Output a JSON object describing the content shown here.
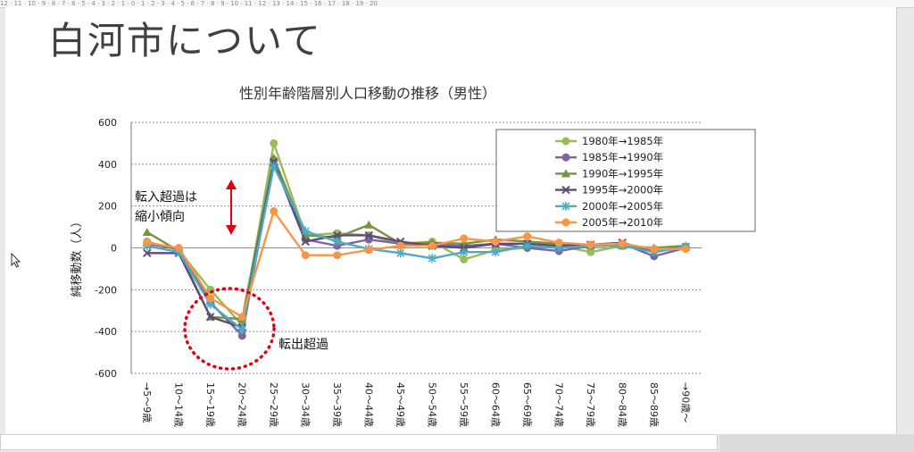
{
  "ruler": {
    "text": "12 · 11 · 10 · 9 · 8 · 7 · 6 · 5 · 4 · 3 · 2 · 1 · 0 · 1 · 2 · 3 · 4 · 5 · 6 · 7 · 8 · 9 · 10 · 11 · 12 · 13 · 14 · 15 · 16 · 17 · 18 · 19 · 20"
  },
  "slide": {
    "title": "白河市について"
  },
  "colors": {
    "s1980": "#9bbb59",
    "s1985": "#8064a2",
    "s1990": "#77933c",
    "s1995": "#604a7b",
    "s2000": "#4bacc6",
    "s2005": "#f79646",
    "arrow": "#e3000f",
    "circle": "#e3000f",
    "zero_line": "#e46c6c"
  },
  "chart_data": {
    "type": "line",
    "title": "性別年齢階層別人口移動の推移（男性）",
    "ylabel": "純移動数（人）",
    "xlabel": "",
    "ylim": [
      -600,
      600
    ],
    "yticks": [
      "600",
      "400",
      "200",
      "0",
      "-200",
      "-400",
      "-600"
    ],
    "categories": [
      "0→5～9歳",
      "5～9→10～14歳",
      "10～14→15～19歳",
      "15～19→20～24歳",
      "20～24→25～29歳",
      "25～29→30～34歳",
      "30～34→35～39歳",
      "35～39→40～44歳",
      "40～44→45～49歳",
      "45～49→50～54歳",
      "50～54→55～59歳",
      "55～59→60～64歳",
      "60～64→65～69歳",
      "65～69→70～74歳",
      "70～74→75～79歳",
      "75～79→80～84歳",
      "80～84→85～89歳",
      "85～89→90歳～"
    ],
    "tick_labels": [
      "→5～9歳",
      "10～14歳",
      "15～19歳",
      "20～24歳",
      "25～29歳",
      "30～34歳",
      "35～39歳",
      "40～44歳",
      "45～49歳",
      "50～54歳",
      "55～59歳",
      "60～64歳",
      "65～69歳",
      "70～74歳",
      "75～79歳",
      "80～84歳",
      "85～89歳",
      "→90歳～"
    ],
    "legend_position": "top-right",
    "grid": true,
    "series": [
      {
        "name": "1980年→1985年",
        "marker": "circle",
        "color_key": "s1980",
        "values": [
          30,
          -10,
          -200,
          -370,
          500,
          60,
          70,
          60,
          20,
          30,
          -55,
          -10,
          0,
          10,
          -20,
          10,
          -5,
          5
        ]
      },
      {
        "name": "1985年→1990年",
        "marker": "circle",
        "color_key": "s1985",
        "values": [
          20,
          -5,
          -260,
          -420,
          420,
          40,
          10,
          40,
          20,
          15,
          10,
          20,
          0,
          -15,
          10,
          20,
          -40,
          0
        ]
      },
      {
        "name": "1990年→1995年",
        "marker": "triangle",
        "color_key": "s1990",
        "values": [
          75,
          -15,
          -330,
          -340,
          430,
          60,
          50,
          110,
          20,
          25,
          20,
          40,
          30,
          20,
          10,
          10,
          0,
          10
        ]
      },
      {
        "name": "1995年→2000年",
        "marker": "x",
        "color_key": "s1995",
        "values": [
          -25,
          -25,
          -330,
          -380,
          410,
          30,
          60,
          60,
          30,
          10,
          0,
          20,
          20,
          10,
          15,
          25,
          -20,
          5
        ]
      },
      {
        "name": "2000年→2005年",
        "marker": "star",
        "color_key": "s2000",
        "values": [
          10,
          -20,
          -270,
          -390,
          390,
          80,
          30,
          -5,
          -25,
          -50,
          -20,
          -20,
          10,
          0,
          10,
          10,
          -20,
          5
        ]
      },
      {
        "name": "2005年→2010年",
        "marker": "circle",
        "color_key": "s2005",
        "values": [
          25,
          0,
          -240,
          -330,
          175,
          -35,
          -35,
          -10,
          10,
          10,
          45,
          30,
          55,
          25,
          15,
          20,
          -5,
          -5
        ]
      }
    ],
    "annotations": {
      "inflow_line1": "転入超過は",
      "inflow_line2": "縮小傾向",
      "outflow": "転出超過"
    }
  }
}
